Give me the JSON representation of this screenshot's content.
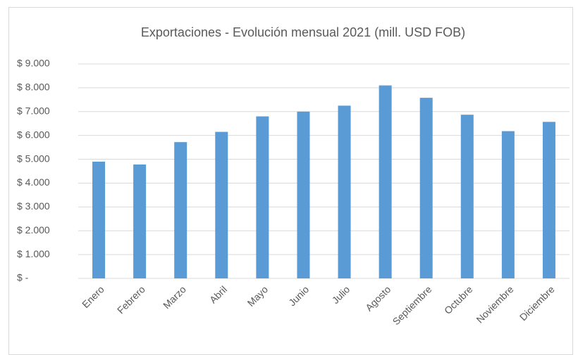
{
  "chart_data": {
    "type": "bar",
    "title": "Exportaciones - Evolución mensual 2021 (mill. USD FOB)",
    "categories": [
      "Enero",
      "Febrero",
      "Marzo",
      "Abril",
      "Mayo",
      "Junio",
      "Julio",
      "Agosto",
      "Septiembre",
      "Octubre",
      "Noviembre",
      "Diciembre"
    ],
    "values": [
      4900,
      4780,
      5720,
      6150,
      6800,
      7000,
      7250,
      8100,
      7580,
      6870,
      6180,
      6570
    ],
    "color": "#5b9bd5",
    "ylim": [
      0,
      9000
    ],
    "yticks": [
      {
        "value": 0,
        "label": "$ -"
      },
      {
        "value": 1000,
        "label": "$ 1.000"
      },
      {
        "value": 2000,
        "label": "$ 2.000"
      },
      {
        "value": 3000,
        "label": "$ 3.000"
      },
      {
        "value": 4000,
        "label": "$ 4.000"
      },
      {
        "value": 5000,
        "label": "$ 5.000"
      },
      {
        "value": 6000,
        "label": "$ 6.000"
      },
      {
        "value": 7000,
        "label": "$ 7.000"
      },
      {
        "value": 8000,
        "label": "$ 8.000"
      },
      {
        "value": 9000,
        "label": "$ 9.000"
      }
    ],
    "grid": true
  }
}
